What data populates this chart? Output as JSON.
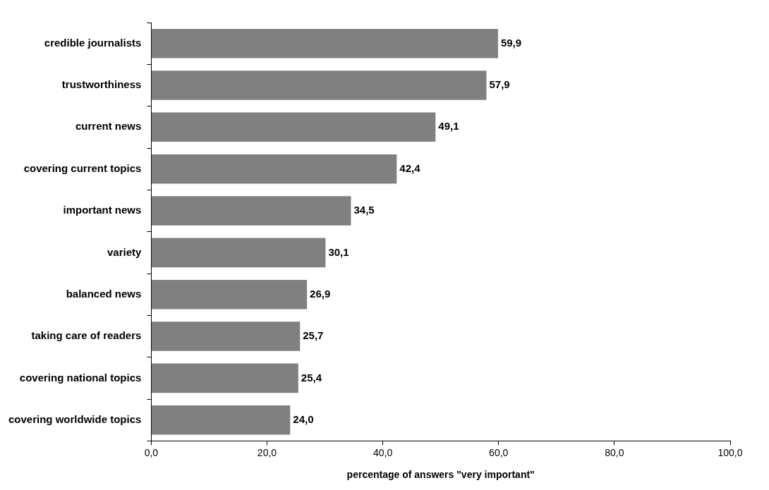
{
  "chart_data": {
    "type": "bar",
    "orientation": "horizontal",
    "xlabel": "percentage of answers \"very important\"",
    "categories": [
      "credible journalists",
      "trustworthiness",
      "current news",
      "covering current topics",
      "important news",
      "variety",
      "balanced news",
      "taking care of readers",
      "covering national topics",
      "covering worldwide topics"
    ],
    "values": [
      59.9,
      57.9,
      49.1,
      42.4,
      34.5,
      30.1,
      26.9,
      25.7,
      25.4,
      24.0
    ],
    "value_labels": [
      "59,9",
      "57,9",
      "49,1",
      "42,4",
      "34,5",
      "30,1",
      "26,9",
      "25,7",
      "25,4",
      "24,0"
    ],
    "color": "#808080",
    "xlim": [
      0,
      100
    ],
    "xticks": [
      {
        "value": 0,
        "label": "0,0"
      },
      {
        "value": 20,
        "label": "20,0"
      },
      {
        "value": 40,
        "label": "40,0"
      },
      {
        "value": 60,
        "label": "60,0"
      },
      {
        "value": 80,
        "label": "80,0"
      },
      {
        "value": 100,
        "label": "100,0"
      }
    ],
    "grid": false,
    "legend": false
  }
}
